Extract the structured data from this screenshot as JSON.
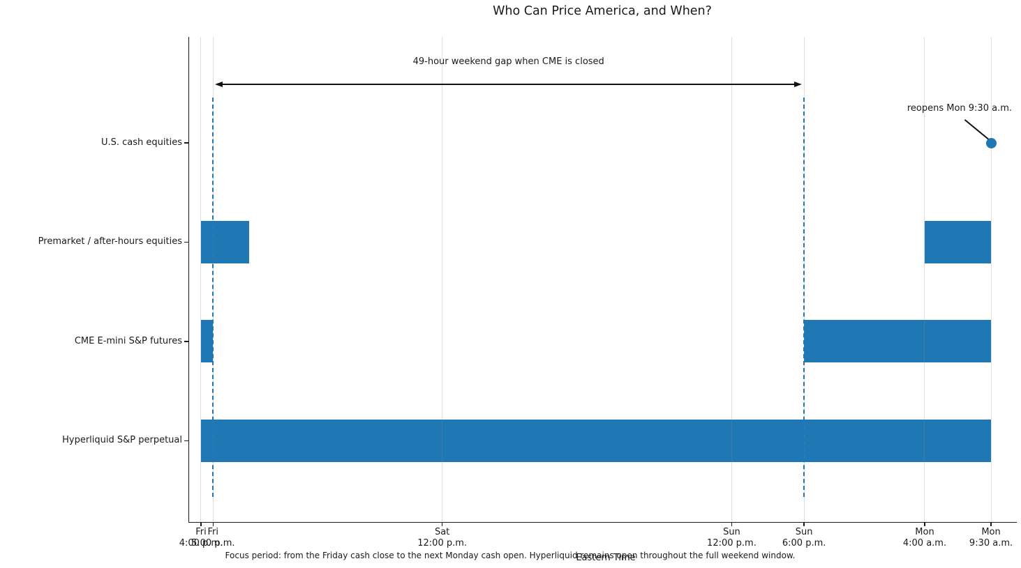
{
  "title": "Who Can Price America, and When?",
  "annotations": {
    "gap_label": "49-hour weekend gap when CME is closed",
    "reopen_label": "reopens Mon 9:30 a.m."
  },
  "caption": "Focus period: from the Friday cash close to the next Monday cash open. Hyperliquid remains open throughout the full weekend window.",
  "colors": {
    "bar": "#1f77b4",
    "dashed_marker": "#1f77b4",
    "grid": "#e8e8e8",
    "text": "#1a1a1a"
  },
  "chart_data": {
    "type": "gantt-timeline",
    "title": "Who Can Price America, and When?",
    "xlabel": "Eastern Time",
    "x_unit": "hours after Friday 4:00 p.m. ET",
    "x_min": -1.04,
    "x_max": 67.58,
    "grid": "vertical-at-ticks",
    "ticks": [
      {
        "hour": 0,
        "day": "Fri",
        "time": "4:00 p.m."
      },
      {
        "hour": 1,
        "day": "Fri",
        "time": "5:00 p.m."
      },
      {
        "hour": 20,
        "day": "Sat",
        "time": "12:00 p.m."
      },
      {
        "hour": 44,
        "day": "Sun",
        "time": "12:00 p.m."
      },
      {
        "hour": 50,
        "day": "Sun",
        "time": "6:00 p.m."
      },
      {
        "hour": 60,
        "day": "Mon",
        "time": "4:00 a.m."
      },
      {
        "hour": 65.5,
        "day": "Mon",
        "time": "9:30 a.m."
      }
    ],
    "rows": [
      {
        "label": "U.S. cash equities",
        "spans": [],
        "point": 65.5
      },
      {
        "label": "Premarket / after-hours equities",
        "spans": [
          [
            0,
            4
          ],
          [
            60,
            65.5
          ]
        ],
        "point": null
      },
      {
        "label": "CME E-mini S&P futures",
        "spans": [
          [
            0,
            1
          ],
          [
            50,
            65.5
          ]
        ],
        "point": null
      },
      {
        "label": "Hyperliquid S&P perpetual",
        "spans": [
          [
            0,
            65.5
          ]
        ],
        "point": null
      }
    ],
    "dashed_markers_hours": [
      1,
      50
    ],
    "gap_arrow": {
      "from_hour": 1,
      "to_hour": 50,
      "label": "49-hour weekend gap when CME is closed"
    }
  }
}
